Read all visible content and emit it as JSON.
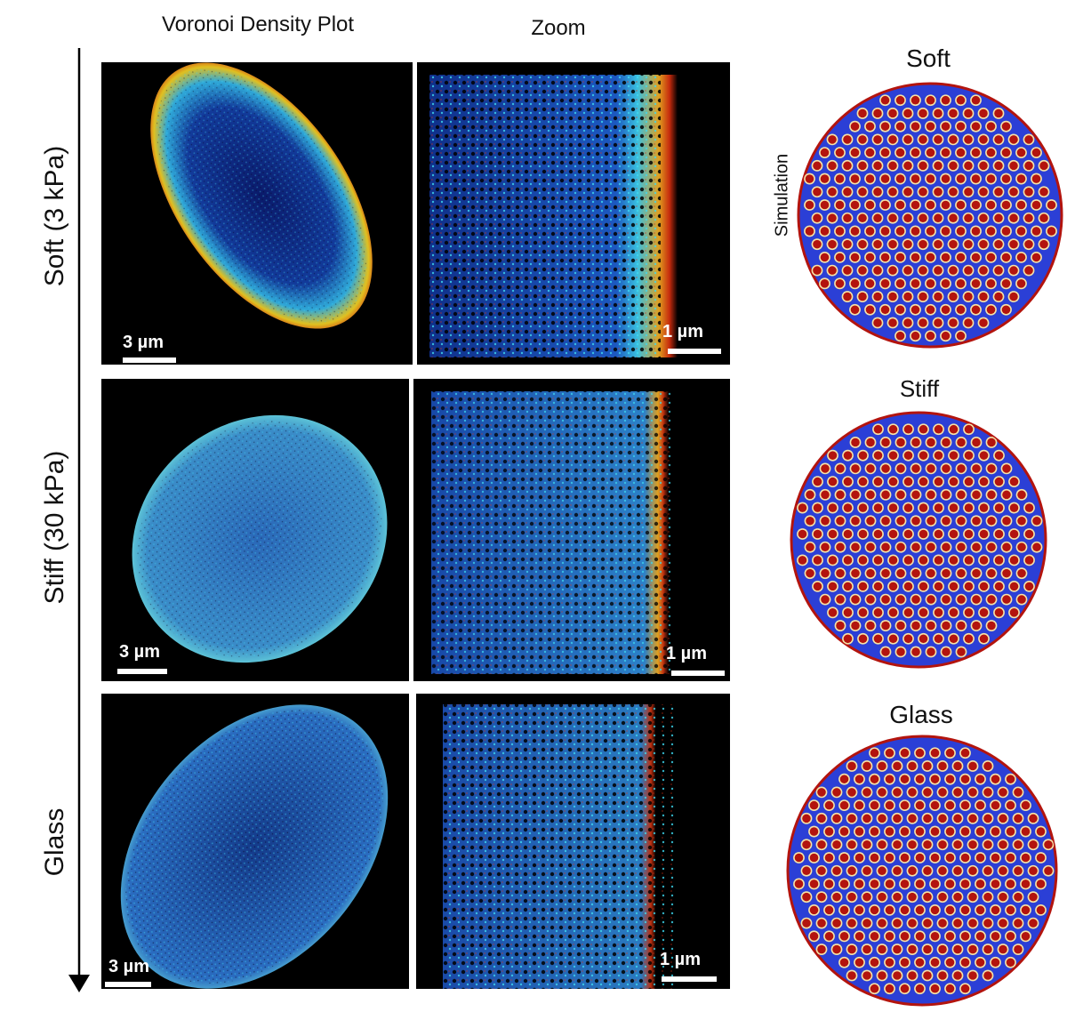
{
  "columns": {
    "voronoi_title": "Voronoi Density Plot",
    "zoom_title": "Zoom"
  },
  "rows": [
    {
      "label": "Soft (3 kPa)",
      "overview_scale": "3 µm",
      "zoom_scale": "1 µm",
      "sim_title": "Soft"
    },
    {
      "label": "Stiff (30 kPa)",
      "overview_scale": "3 µm",
      "zoom_scale": "1 µm",
      "sim_title": "Stiff"
    },
    {
      "label": "Glass",
      "overview_scale": "3 µm",
      "zoom_scale": "1 µm",
      "sim_title": "Glass"
    }
  ],
  "simulation_label": "Simulation",
  "colors": {
    "panel_bg": "#000000",
    "low_density": "#1f2fb0",
    "mid_density": "#33c3e6",
    "high_density": "#e03a12",
    "sim_background": "#2b3fd6",
    "sim_dot_core": "#b3140e",
    "sim_dot_ring": "#f5e3a8"
  }
}
